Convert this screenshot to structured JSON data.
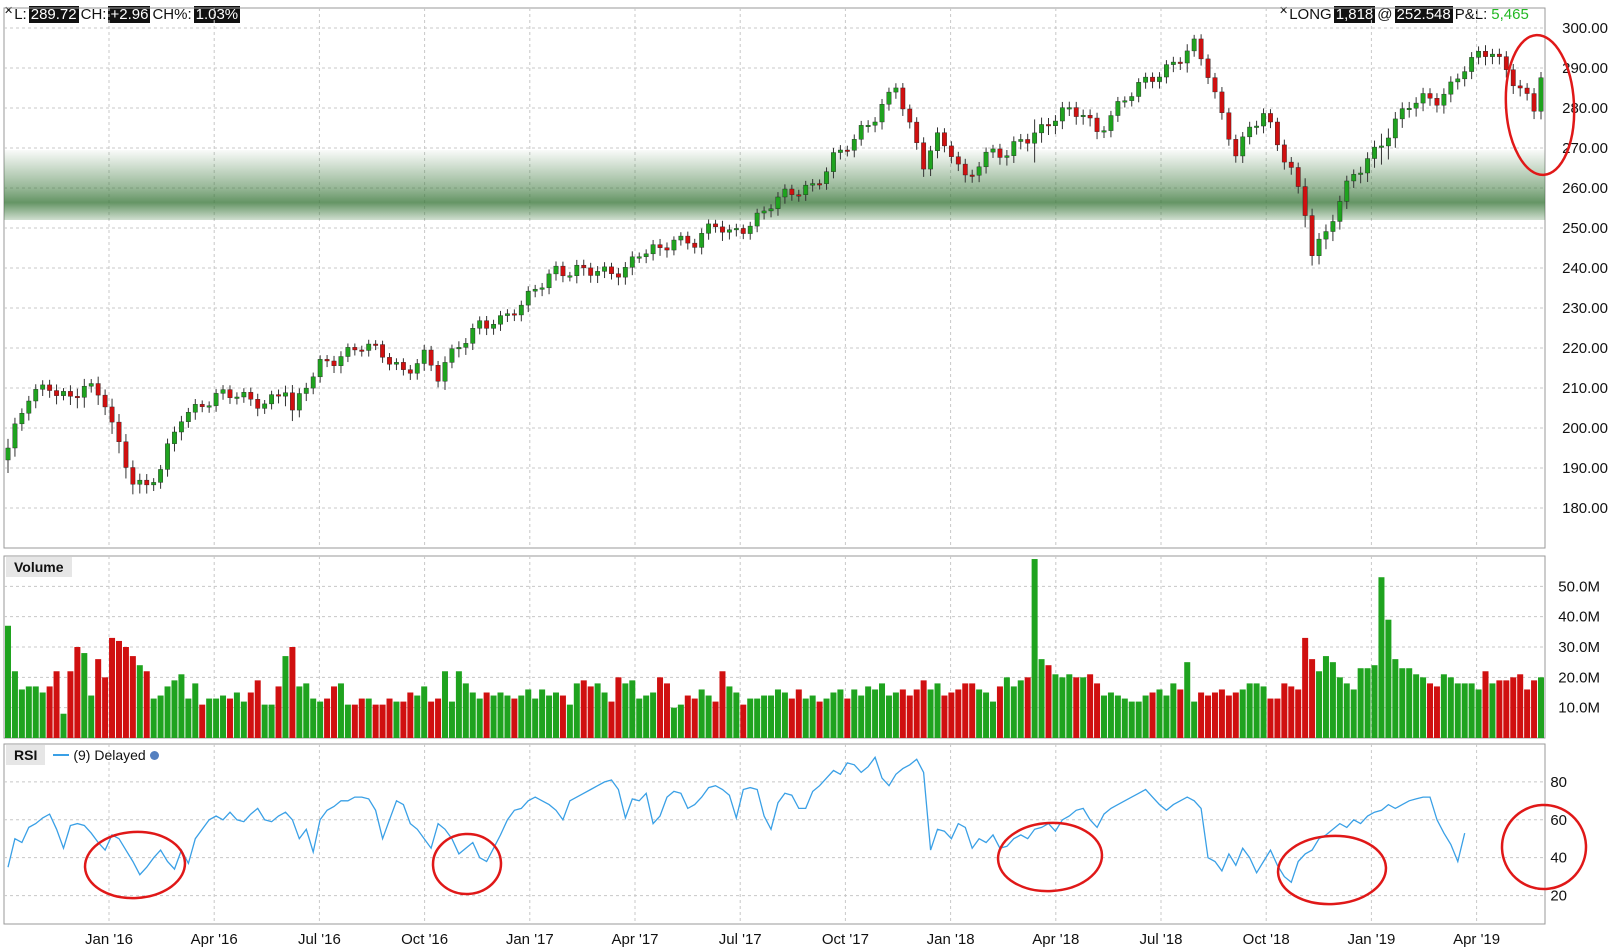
{
  "header_left": {
    "l_label": "L:",
    "l_value": "289.72",
    "ch_label": "CH:",
    "ch_value": "+2.96",
    "chp_label": "CH%:",
    "chp_value": "1.03%"
  },
  "header_right": {
    "side": "LONG",
    "qty": "1,818",
    "at": "@",
    "price": "252.548",
    "pl_label": "P&L:",
    "pl_value": "5,465"
  },
  "colors": {
    "up": "#1fa31f",
    "down": "#d01010",
    "rsi_line": "#3aa0e6",
    "annotation": "#e01818",
    "zone": "#3e7a3e",
    "grid": "#c8c8c8"
  },
  "chart_data": [
    {
      "type": "candlestick",
      "ylim": [
        170,
        305
      ],
      "yticks": [
        "300.00",
        "290.00",
        "280.00",
        "270.00",
        "260.00",
        "250.00",
        "240.00",
        "230.00",
        "220.00",
        "210.00",
        "200.00",
        "190.00",
        "180.00"
      ],
      "xticks": [
        "Jan '16",
        "Apr '16",
        "Jul '16",
        "Oct '16",
        "Jan '17",
        "Apr '17",
        "Jul '17",
        "Oct '17",
        "Jan '18",
        "Apr '18",
        "Jul '18",
        "Oct '18",
        "Jan '19",
        "Apr '19"
      ],
      "support_zone": [
        252,
        266
      ],
      "close_path": [
        [
          0,
          195
        ],
        [
          3,
          207
        ],
        [
          6,
          211
        ],
        [
          9,
          208
        ],
        [
          11,
          210
        ],
        [
          14,
          206
        ],
        [
          16,
          196
        ],
        [
          18,
          188
        ],
        [
          20,
          185
        ],
        [
          22,
          189
        ],
        [
          25,
          203
        ],
        [
          28,
          207
        ],
        [
          31,
          208
        ],
        [
          34,
          207
        ],
        [
          37,
          207
        ],
        [
          40,
          210
        ],
        [
          41,
          203
        ],
        [
          43,
          210
        ],
        [
          45,
          216
        ],
        [
          48,
          219
        ],
        [
          51,
          220
        ],
        [
          54,
          218
        ],
        [
          57,
          215
        ],
        [
          60,
          218
        ],
        [
          62,
          212
        ],
        [
          65,
          221
        ],
        [
          68,
          227
        ],
        [
          71,
          226
        ],
        [
          74,
          230
        ],
        [
          76,
          236
        ],
        [
          79,
          240
        ],
        [
          81,
          238
        ],
        [
          84,
          239
        ],
        [
          87,
          240
        ],
        [
          89,
          240
        ],
        [
          91,
          243
        ],
        [
          94,
          244
        ],
        [
          96,
          248
        ],
        [
          99,
          247
        ],
        [
          102,
          250
        ],
        [
          104,
          248
        ],
        [
          107,
          252
        ],
        [
          110,
          256
        ],
        [
          113,
          258
        ],
        [
          116,
          261
        ],
        [
          119,
          268
        ],
        [
          122,
          271
        ],
        [
          125,
          278
        ],
        [
          128,
          287
        ],
        [
          130,
          275
        ],
        [
          132,
          265
        ],
        [
          134,
          272
        ],
        [
          136,
          270
        ],
        [
          138,
          263
        ],
        [
          140,
          266
        ],
        [
          142,
          268
        ],
        [
          144,
          268
        ],
        [
          146,
          273
        ],
        [
          149,
          275
        ],
        [
          152,
          278
        ],
        [
          155,
          279
        ],
        [
          157,
          275
        ],
        [
          160,
          280
        ],
        [
          162,
          283
        ],
        [
          165,
          288
        ],
        [
          168,
          292
        ],
        [
          171,
          295
        ],
        [
          173,
          288
        ],
        [
          175,
          278
        ],
        [
          177,
          270
        ],
        [
          179,
          275
        ],
        [
          181,
          278
        ],
        [
          183,
          270
        ],
        [
          185,
          265
        ],
        [
          187,
          255
        ],
        [
          188,
          245
        ],
        [
          190,
          248
        ],
        [
          192,
          256
        ],
        [
          194,
          263
        ],
        [
          196,
          268
        ],
        [
          198,
          272
        ],
        [
          200,
          276
        ],
        [
          202,
          280
        ],
        [
          204,
          282
        ],
        [
          206,
          283
        ],
        [
          208,
          286
        ],
        [
          210,
          290
        ],
        [
          212,
          292
        ],
        [
          214,
          294
        ],
        [
          216,
          290
        ],
        [
          218,
          286
        ],
        [
          220,
          279
        ],
        [
          221,
          288
        ]
      ],
      "volume": {
        "ylim": [
          0,
          60
        ],
        "yticks": [
          "50.0M",
          "40.0M",
          "30.0M",
          "20.0M",
          "10.0M"
        ],
        "values": [
          37,
          22,
          16,
          17,
          17,
          15,
          17,
          22,
          8,
          22,
          30,
          28,
          14,
          26,
          20,
          33,
          32,
          30,
          27,
          24,
          22,
          13,
          14,
          17,
          19,
          21,
          13,
          18,
          11,
          13,
          13,
          14,
          13,
          15,
          12,
          15,
          19,
          11,
          11,
          17,
          27,
          30,
          17,
          18,
          13,
          12,
          13,
          17,
          18,
          11,
          11,
          13,
          13,
          11,
          11,
          13,
          12,
          12,
          15,
          14,
          17,
          12,
          13,
          22,
          12,
          22,
          18,
          15,
          13,
          15,
          14,
          15,
          14,
          13,
          14,
          16,
          13,
          16,
          14,
          15,
          14,
          11,
          18,
          19,
          17,
          18,
          15,
          12,
          20,
          18,
          19,
          13,
          14,
          15,
          20,
          18,
          10,
          11,
          14,
          13,
          16,
          14,
          12,
          22,
          17,
          15,
          11,
          13,
          13,
          14,
          14,
          16,
          15,
          13,
          16,
          13,
          14,
          12,
          13,
          15,
          16,
          13,
          16,
          14,
          17,
          16,
          18,
          14,
          15,
          16,
          14,
          16,
          19,
          16,
          18,
          14,
          15,
          16,
          18,
          18,
          16,
          15,
          12,
          17,
          20,
          17,
          19,
          20,
          59,
          26,
          24,
          21,
          20,
          21,
          20,
          20,
          21,
          18,
          14,
          15,
          14,
          13,
          12,
          12,
          14,
          15,
          16,
          14,
          18,
          16,
          25,
          12,
          15,
          14,
          15,
          16,
          14,
          15,
          16,
          18,
          18,
          17,
          13,
          13,
          18,
          17,
          16,
          33,
          26,
          22,
          27,
          25,
          20,
          18,
          16,
          23,
          23,
          24,
          53,
          39,
          26,
          23,
          23,
          21,
          20,
          18,
          17,
          21,
          20,
          18,
          18,
          18,
          16,
          22,
          18,
          19,
          19,
          20,
          21,
          16,
          19,
          20,
          18,
          17,
          15,
          16
        ],
        "colors": "close-change"
      },
      "rsi": {
        "series_name": "(9) Delayed",
        "ylim": [
          5,
          100
        ],
        "yticks": [
          "80",
          "60",
          "40",
          "20"
        ],
        "values": [
          35,
          50,
          48,
          56,
          58,
          61,
          63,
          55,
          45,
          57,
          58,
          57,
          53,
          48,
          44,
          52,
          50,
          44,
          38,
          31,
          35,
          40,
          44,
          38,
          34,
          44,
          37,
          50,
          55,
          60,
          62,
          60,
          64,
          60,
          59,
          63,
          66,
          60,
          59,
          62,
          64,
          60,
          50,
          55,
          43,
          60,
          65,
          67,
          70,
          70,
          72,
          72,
          71,
          65,
          50,
          60,
          70,
          68,
          58,
          55,
          50,
          45,
          58,
          55,
          50,
          42,
          45,
          48,
          40,
          38,
          45,
          52,
          60,
          65,
          66,
          70,
          72,
          70,
          68,
          65,
          60,
          70,
          72,
          74,
          76,
          78,
          80,
          81,
          76,
          61,
          71,
          70,
          74,
          58,
          62,
          72,
          75,
          74,
          66,
          68,
          72,
          77,
          78,
          76,
          73,
          61,
          76,
          77,
          76,
          62,
          55,
          69,
          74,
          73,
          66,
          66,
          75,
          78,
          82,
          86,
          84,
          90,
          89,
          85,
          88,
          93,
          82,
          78,
          84,
          87,
          89,
          92,
          85,
          44,
          55,
          54,
          50,
          58,
          56,
          45,
          50,
          48,
          52,
          45,
          46,
          50,
          52,
          50,
          55,
          56,
          58,
          54,
          60,
          62,
          65,
          66,
          60,
          56,
          63,
          66,
          68,
          70,
          72,
          74,
          76,
          72,
          68,
          65,
          68,
          70,
          72,
          70,
          66,
          40,
          38,
          33,
          42,
          36,
          45,
          40,
          32,
          38,
          44,
          36,
          30,
          27,
          38,
          42,
          44,
          50,
          52,
          55,
          58,
          56,
          60,
          58,
          62,
          64,
          65,
          68,
          66,
          68,
          70,
          71,
          72,
          72,
          60,
          53,
          47,
          38,
          53
        ]
      }
    }
  ]
}
